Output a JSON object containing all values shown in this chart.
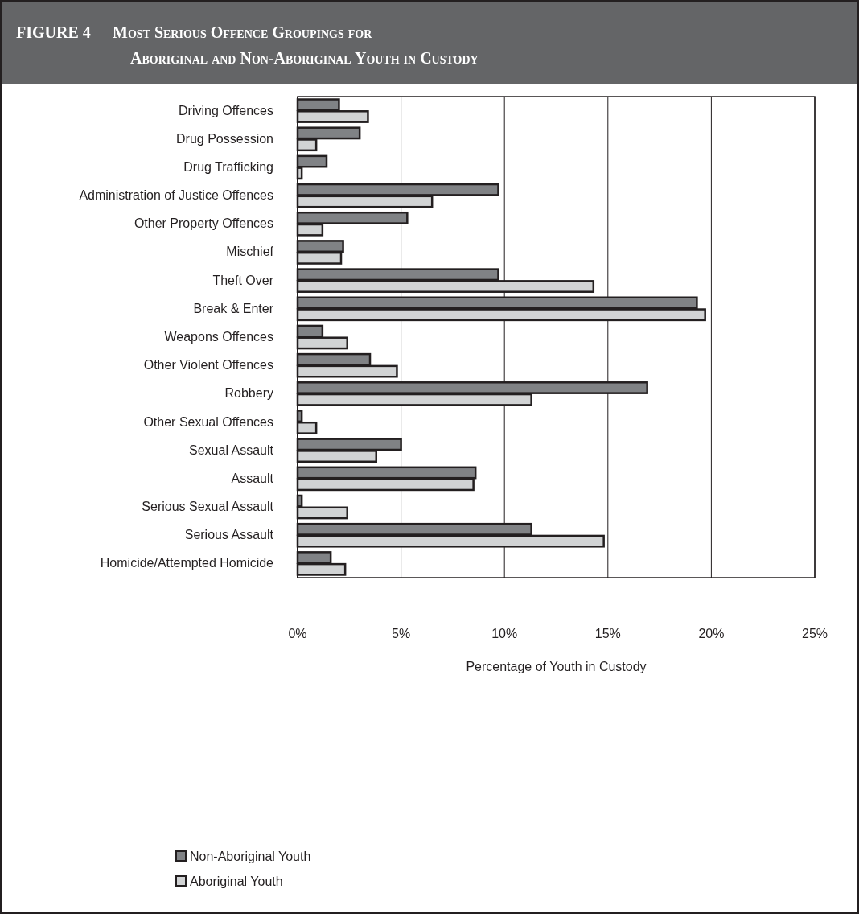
{
  "chart_data": {
    "type": "bar",
    "orientation": "horizontal",
    "title": "FIGURE 4",
    "subtitle": "Most Serious Offence Groupings for Aboriginal and Non-Aboriginal Youth in Custody",
    "xlabel": "Percentage of Youth in Custody",
    "categories": [
      "Driving Offences",
      "Drug Possession",
      "Drug Trafficking",
      "Administration of Justice Offences",
      "Other Property Offences",
      "Mischief",
      "Theft Over",
      "Break & Enter",
      "Weapons Offences",
      "Other Violent Offences",
      "Robbery",
      "Other Sexual Offences",
      "Sexual Assault",
      "Assault",
      "Serious Sexual Assault",
      "Serious Assault",
      "Homicide/Attempted Homicide"
    ],
    "series": [
      {
        "name": "Non-Aboriginal Youth",
        "color": "#808285",
        "values": [
          2.0,
          3.0,
          1.4,
          9.7,
          5.3,
          2.2,
          9.7,
          19.3,
          1.2,
          3.5,
          16.9,
          0.2,
          5.0,
          8.6,
          0.2,
          11.3,
          1.6
        ]
      },
      {
        "name": "Aboriginal Youth",
        "color": "#d1d3d4",
        "values": [
          3.4,
          0.9,
          0.2,
          6.5,
          1.2,
          2.1,
          14.3,
          19.7,
          2.4,
          4.8,
          11.3,
          0.9,
          3.8,
          8.5,
          2.4,
          14.8,
          2.3
        ]
      }
    ],
    "xlim": [
      0,
      25
    ],
    "xticks": [
      {
        "value": 0,
        "label": "0%"
      },
      {
        "value": 5,
        "label": "5%"
      },
      {
        "value": 10,
        "label": "10%"
      },
      {
        "value": 15,
        "label": "15%"
      },
      {
        "value": 20,
        "label": "20%"
      },
      {
        "value": 25,
        "label": "25%"
      }
    ],
    "grid": "x",
    "legend": "bottom"
  }
}
